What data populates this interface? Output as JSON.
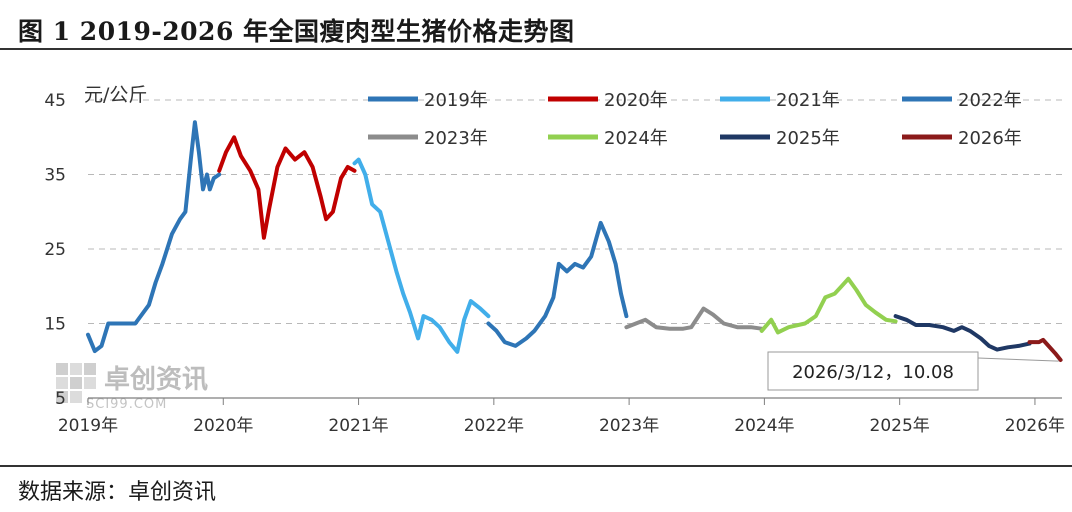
{
  "header": {
    "title": "图 1  2019-2026 年全国瘦肉型生猪价格走势图"
  },
  "footer": {
    "source": "数据来源：卓创资讯"
  },
  "watermark": {
    "text": "卓创资讯",
    "subtext": "SCI99.COM"
  },
  "chart_data": {
    "type": "line",
    "title": "图 1  2019-2026 年全国瘦肉型生猪价格走势图",
    "ylabel": "元/公斤",
    "ylim": [
      5,
      45
    ],
    "yticks": [
      5,
      15,
      25,
      35,
      45
    ],
    "xlim": [
      2019.0,
      2026.2
    ],
    "xticks": [
      {
        "value": 2019,
        "label": "2019年"
      },
      {
        "value": 2020,
        "label": "2020年"
      },
      {
        "value": 2021,
        "label": "2021年"
      },
      {
        "value": 2022,
        "label": "2022年"
      },
      {
        "value": 2023,
        "label": "2023年"
      },
      {
        "value": 2024,
        "label": "2024年"
      },
      {
        "value": 2025,
        "label": "2025年"
      },
      {
        "value": 2026,
        "label": "2026年"
      }
    ],
    "grid": "horizontal-dashed",
    "legend_position": "top",
    "series": [
      {
        "name": "2019年",
        "color": "#2E75B6",
        "points": [
          [
            2019.0,
            13.5
          ],
          [
            2019.05,
            11.3
          ],
          [
            2019.1,
            12.0
          ],
          [
            2019.15,
            15.0
          ],
          [
            2019.25,
            15.0
          ],
          [
            2019.35,
            15.0
          ],
          [
            2019.45,
            17.5
          ],
          [
            2019.5,
            20.5
          ],
          [
            2019.55,
            23.0
          ],
          [
            2019.62,
            27.0
          ],
          [
            2019.68,
            29.0
          ],
          [
            2019.72,
            30.0
          ],
          [
            2019.76,
            37.0
          ],
          [
            2019.79,
            42.0
          ],
          [
            2019.82,
            38.0
          ],
          [
            2019.85,
            33.0
          ],
          [
            2019.88,
            35.0
          ],
          [
            2019.9,
            33.0
          ],
          [
            2019.93,
            34.5
          ],
          [
            2019.97,
            35.0
          ]
        ]
      },
      {
        "name": "2020年",
        "color": "#C00000",
        "points": [
          [
            2019.97,
            35.5
          ],
          [
            2020.02,
            38.0
          ],
          [
            2020.08,
            40.0
          ],
          [
            2020.13,
            37.5
          ],
          [
            2020.2,
            35.5
          ],
          [
            2020.26,
            33.0
          ],
          [
            2020.3,
            26.5
          ],
          [
            2020.34,
            30.5
          ],
          [
            2020.4,
            36.0
          ],
          [
            2020.46,
            38.5
          ],
          [
            2020.53,
            37.0
          ],
          [
            2020.6,
            38.0
          ],
          [
            2020.66,
            36.0
          ],
          [
            2020.72,
            32.0
          ],
          [
            2020.76,
            29.0
          ],
          [
            2020.81,
            30.0
          ],
          [
            2020.87,
            34.5
          ],
          [
            2020.92,
            36.0
          ],
          [
            2020.97,
            35.5
          ]
        ]
      },
      {
        "name": "2021年",
        "color": "#41AEEA",
        "points": [
          [
            2020.97,
            36.5
          ],
          [
            2021.0,
            37.0
          ],
          [
            2021.05,
            35.0
          ],
          [
            2021.1,
            31.0
          ],
          [
            2021.16,
            30.0
          ],
          [
            2021.22,
            26.0
          ],
          [
            2021.28,
            22.0
          ],
          [
            2021.33,
            19.0
          ],
          [
            2021.38,
            16.5
          ],
          [
            2021.44,
            13.0
          ],
          [
            2021.48,
            16.0
          ],
          [
            2021.54,
            15.5
          ],
          [
            2021.6,
            14.5
          ],
          [
            2021.67,
            12.5
          ],
          [
            2021.73,
            11.2
          ],
          [
            2021.78,
            15.5
          ],
          [
            2021.83,
            18.0
          ],
          [
            2021.9,
            17.0
          ],
          [
            2021.96,
            16.0
          ]
        ]
      },
      {
        "name": "2022年",
        "color": "#2E75B6",
        "points": [
          [
            2021.96,
            15.0
          ],
          [
            2022.02,
            14.0
          ],
          [
            2022.08,
            12.5
          ],
          [
            2022.16,
            12.0
          ],
          [
            2022.24,
            13.0
          ],
          [
            2022.3,
            14.0
          ],
          [
            2022.38,
            16.0
          ],
          [
            2022.44,
            18.5
          ],
          [
            2022.48,
            23.0
          ],
          [
            2022.54,
            22.0
          ],
          [
            2022.6,
            23.0
          ],
          [
            2022.66,
            22.5
          ],
          [
            2022.72,
            24.0
          ],
          [
            2022.79,
            28.5
          ],
          [
            2022.85,
            26.0
          ],
          [
            2022.9,
            23.0
          ],
          [
            2022.94,
            19.0
          ],
          [
            2022.98,
            16.0
          ]
        ]
      },
      {
        "name": "2023年",
        "color": "#8C8C8C",
        "points": [
          [
            2022.98,
            14.5
          ],
          [
            2023.05,
            15.0
          ],
          [
            2023.12,
            15.5
          ],
          [
            2023.2,
            14.5
          ],
          [
            2023.3,
            14.3
          ],
          [
            2023.4,
            14.3
          ],
          [
            2023.46,
            14.5
          ],
          [
            2023.55,
            17.0
          ],
          [
            2023.62,
            16.2
          ],
          [
            2023.7,
            15.0
          ],
          [
            2023.8,
            14.5
          ],
          [
            2023.9,
            14.5
          ],
          [
            2023.98,
            14.3
          ]
        ]
      },
      {
        "name": "2024年",
        "color": "#92D050",
        "points": [
          [
            2023.98,
            14.0
          ],
          [
            2024.05,
            15.5
          ],
          [
            2024.1,
            13.8
          ],
          [
            2024.18,
            14.5
          ],
          [
            2024.3,
            15.0
          ],
          [
            2024.38,
            16.0
          ],
          [
            2024.45,
            18.5
          ],
          [
            2024.52,
            19.0
          ],
          [
            2024.57,
            20.0
          ],
          [
            2024.62,
            21.0
          ],
          [
            2024.68,
            19.5
          ],
          [
            2024.75,
            17.5
          ],
          [
            2024.82,
            16.5
          ],
          [
            2024.9,
            15.5
          ],
          [
            2024.97,
            15.3
          ]
        ]
      },
      {
        "name": "2025年",
        "color": "#1F3864",
        "points": [
          [
            2024.97,
            16.0
          ],
          [
            2025.05,
            15.5
          ],
          [
            2025.12,
            14.8
          ],
          [
            2025.22,
            14.8
          ],
          [
            2025.32,
            14.5
          ],
          [
            2025.4,
            14.0
          ],
          [
            2025.46,
            14.5
          ],
          [
            2025.52,
            14.0
          ],
          [
            2025.6,
            13.0
          ],
          [
            2025.66,
            12.0
          ],
          [
            2025.72,
            11.5
          ],
          [
            2025.8,
            11.8
          ],
          [
            2025.88,
            12.0
          ],
          [
            2025.96,
            12.3
          ]
        ]
      },
      {
        "name": "2026年",
        "color": "#8B1A1A",
        "points": [
          [
            2025.96,
            12.5
          ],
          [
            2026.03,
            12.5
          ],
          [
            2026.06,
            12.8
          ],
          [
            2026.1,
            12.0
          ],
          [
            2026.15,
            11.0
          ],
          [
            2026.19,
            10.1
          ]
        ]
      }
    ],
    "annotations": [
      {
        "text": "2026/3/12，10.08",
        "x": 2026.19,
        "y": 10.08
      }
    ]
  }
}
